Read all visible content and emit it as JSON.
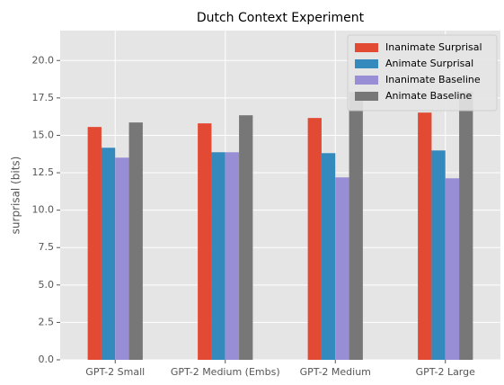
{
  "chart_data": {
    "type": "bar",
    "title": "Dutch Context Experiment",
    "ylabel": "surprisal (bits)",
    "categories": [
      "GPT-2 Small",
      "GPT-2 Medium (Embs)",
      "GPT-2 Medium",
      "GPT-2 Large"
    ],
    "series": [
      {
        "name": "Inanimate Surprisal",
        "color": "#E24A33",
        "values": [
          15.56,
          15.8,
          16.16,
          16.52
        ]
      },
      {
        "name": "Animate Surprisal",
        "color": "#348ABD",
        "values": [
          14.17,
          13.87,
          13.81,
          13.99
        ]
      },
      {
        "name": "Inanimate Baseline",
        "color": "#988ED5",
        "values": [
          13.51,
          13.87,
          12.19,
          12.13
        ]
      },
      {
        "name": "Animate Baseline",
        "color": "#777777",
        "values": [
          15.86,
          16.34,
          17.9,
          17.9
        ]
      }
    ],
    "ylim": [
      0,
      22
    ],
    "yticks": [
      {
        "value": 0,
        "label": "0.0"
      },
      {
        "value": 2.5,
        "label": "2.5"
      },
      {
        "value": 5,
        "label": "5.0"
      },
      {
        "value": 7.5,
        "label": "7.5"
      },
      {
        "value": 10,
        "label": "10.0"
      },
      {
        "value": 12.5,
        "label": "12.5"
      },
      {
        "value": 15,
        "label": "15.0"
      },
      {
        "value": 17.5,
        "label": "17.5"
      },
      {
        "value": 20,
        "label": "20.0"
      }
    ],
    "grid": true,
    "legend": "upper right"
  }
}
